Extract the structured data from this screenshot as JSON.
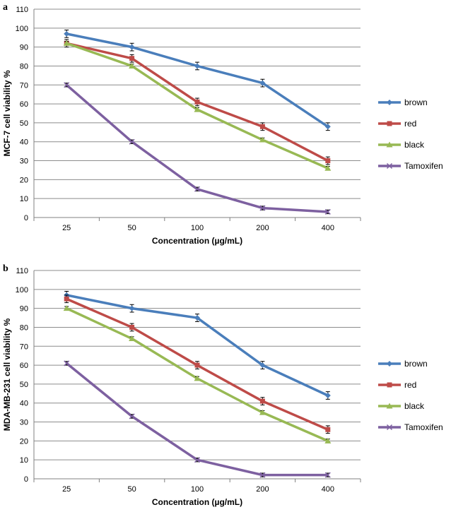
{
  "colors": {
    "brown": "#4a7ebb",
    "red": "#be4b48",
    "black": "#98b954",
    "Tamoxifen": "#7d60a0",
    "grid": "#8c8c8c",
    "axis": "#808080",
    "errorbar": "#000000"
  },
  "chart_data": [
    {
      "panel_label": "a",
      "type": "line",
      "title": "",
      "xlabel": "Concentration (µg/mL)",
      "ylabel": "MCF-7 cell viability %",
      "categories": [
        "25",
        "50",
        "100",
        "200",
        "400"
      ],
      "ylim": [
        0,
        110
      ],
      "yticks": [
        "0",
        "10",
        "20",
        "30",
        "40",
        "50",
        "60",
        "70",
        "80",
        "90",
        "100",
        "110"
      ],
      "grid": true,
      "legend_position": "right",
      "series": [
        {
          "name": "brown",
          "marker": "diamond",
          "values": [
            97,
            90,
            80,
            71,
            48
          ],
          "errors": [
            2,
            2,
            2,
            2,
            2
          ]
        },
        {
          "name": "red",
          "marker": "square",
          "values": [
            92,
            84,
            61,
            48,
            30
          ],
          "errors": [
            2,
            2,
            2,
            2,
            2
          ]
        },
        {
          "name": "black",
          "marker": "triangle",
          "values": [
            92,
            80,
            57,
            41,
            26
          ],
          "errors": [
            1,
            1,
            1,
            1,
            1
          ]
        },
        {
          "name": "Tamoxifen",
          "marker": "x",
          "values": [
            70,
            40,
            15,
            5,
            3
          ],
          "errors": [
            1,
            1,
            1,
            1,
            1
          ]
        }
      ]
    },
    {
      "panel_label": "b",
      "type": "line",
      "title": "",
      "xlabel": "Concentration (µg/mL)",
      "ylabel": "MDA-MB-231 cell viability %",
      "categories": [
        "25",
        "50",
        "100",
        "200",
        "400"
      ],
      "ylim": [
        0,
        110
      ],
      "yticks": [
        "0",
        "10",
        "20",
        "30",
        "40",
        "50",
        "60",
        "70",
        "80",
        "90",
        "100",
        "110"
      ],
      "grid": true,
      "legend_position": "right",
      "series": [
        {
          "name": "brown",
          "marker": "diamond",
          "values": [
            97,
            90,
            85,
            60,
            44
          ],
          "errors": [
            2,
            2,
            2,
            2,
            2
          ]
        },
        {
          "name": "red",
          "marker": "square",
          "values": [
            95,
            80,
            60,
            41,
            26
          ],
          "errors": [
            2,
            2,
            2,
            2,
            2
          ]
        },
        {
          "name": "black",
          "marker": "triangle",
          "values": [
            90,
            74,
            53,
            35,
            20
          ],
          "errors": [
            1,
            1,
            1,
            1,
            1
          ]
        },
        {
          "name": "Tamoxifen",
          "marker": "x",
          "values": [
            61,
            33,
            10,
            2,
            2
          ],
          "errors": [
            1,
            1,
            1,
            1,
            1
          ]
        }
      ]
    }
  ]
}
